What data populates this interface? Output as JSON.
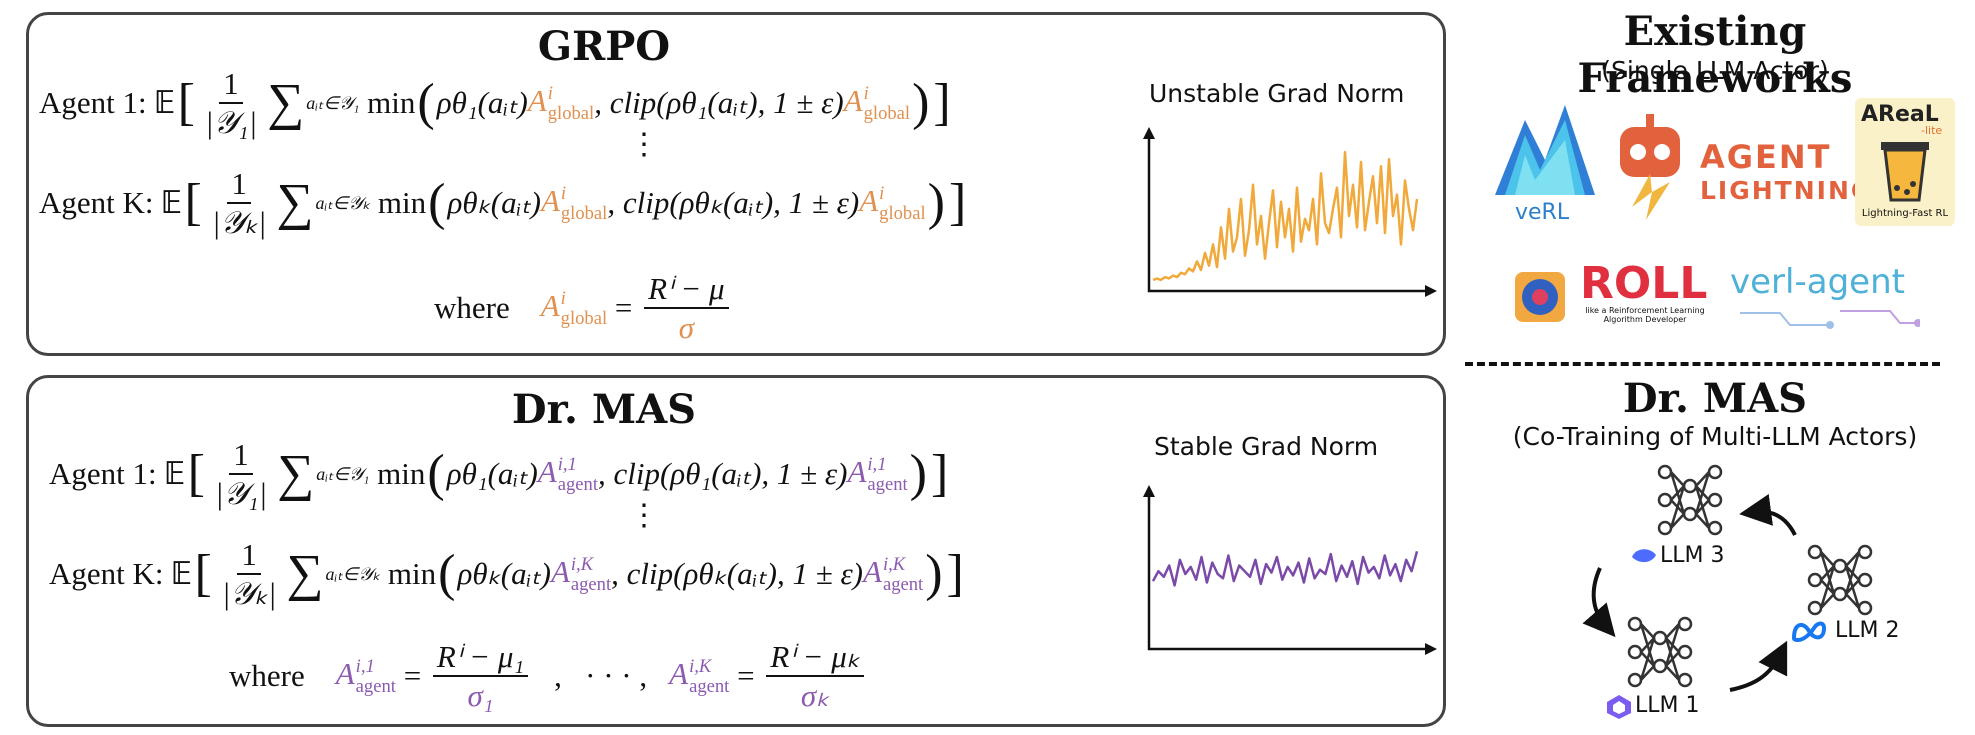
{
  "grpo": {
    "title": "GRPO",
    "agent1_label": "Agent 1:",
    "agentK_label": "Agent K:",
    "expectation": "𝔼",
    "frac_num": "1",
    "den1": "|𝒴₁|",
    "denK": "|𝒴ₖ|",
    "sum1_sub": "aᵢₜ∈𝒴₁",
    "sumK_sub": "aᵢₜ∈𝒴ₖ",
    "min_text": "min",
    "rho1": "ρθ₁(aᵢₜ)",
    "rhoK": "ρθₖ(aᵢₜ)",
    "adv": "A",
    "adv_sup": "i",
    "adv_sub": "global",
    "clip1": ", clip(ρθ₁(aᵢₜ), 1 ± ε)",
    "clipK": ", clip(ρθₖ(aᵢₜ), 1 ± ε)",
    "where": "where",
    "where_num": "Rⁱ − μ",
    "where_den": "σ",
    "vdots": "⋮",
    "chart_label": "Unstable Grad Norm"
  },
  "drmas": {
    "title": "Dr. MAS",
    "agent1_label": "Agent 1:",
    "agentK_label": "Agent K:",
    "expectation": "𝔼",
    "frac_num": "1",
    "den1": "|𝒴₁|",
    "denK": "|𝒴ₖ|",
    "sum1_sub": "aᵢₜ∈𝒴₁",
    "sumK_sub": "aᵢₜ∈𝒴ₖ",
    "min_text": "min",
    "rho1": "ρθ₁(aᵢₜ)",
    "rhoK": "ρθₖ(aᵢₜ)",
    "adv": "A",
    "adv_sup1": "i,1",
    "adv_supK": "i,K",
    "adv_sub": "agent",
    "clip1": ", clip(ρθ₁(aᵢₜ), 1 ± ε)",
    "clipK": ", clip(ρθₖ(aᵢₜ), 1 ± ε)",
    "where": "where",
    "where_num1": "Rⁱ − μ₁",
    "where_den1": "σ₁",
    "where_numK": "Rⁱ − μₖ",
    "where_denK": "σₖ",
    "ellipsis": ",   · · · ,",
    "vdots": "⋮",
    "chart_label": "Stable Grad Norm"
  },
  "existing": {
    "title": "Existing Frameworks",
    "subtitle": "(Single LLM Actor)",
    "logos": {
      "verl": "veRL",
      "agent_lightning_1": "AGENT",
      "agent_lightning_2": "LIGHTNING",
      "areal": "AReaL",
      "areal_lite": "-lite",
      "areal_tag": "Lightning-Fast RL",
      "roll": "ROLL",
      "roll_tag": "like a Reinforcement Learning Algorithm Developer",
      "verl_agent": "verl-agent"
    }
  },
  "drmas_side": {
    "title": "Dr. MAS",
    "subtitle": "(Co-Training of Multi-LLM Actors)",
    "llms": [
      "LLM 3",
      "LLM 2",
      "LLM 1"
    ]
  },
  "colors": {
    "orange": "#e0904f",
    "purple": "#8c5bb0",
    "chart_orange": "#f0a93a",
    "chart_purple": "#7b4aa8"
  },
  "chart_data": [
    {
      "type": "line",
      "title": "Unstable Grad Norm",
      "series": [
        {
          "values": [
            0.05,
            0.06,
            0.05,
            0.07,
            0.06,
            0.08,
            0.07,
            0.1,
            0.09,
            0.13,
            0.11,
            0.18,
            0.12,
            0.24,
            0.15,
            0.3,
            0.14,
            0.42,
            0.2,
            0.55,
            0.25,
            0.35,
            0.62,
            0.22,
            0.4,
            0.72,
            0.3,
            0.5,
            0.2,
            0.45,
            0.68,
            0.28,
            0.6,
            0.35,
            0.55,
            0.25,
            0.7,
            0.32,
            0.48,
            0.4,
            0.62,
            0.3,
            0.8,
            0.45,
            0.38,
            0.55,
            0.7,
            0.35,
            0.95,
            0.5,
            0.72,
            0.42,
            0.88,
            0.4,
            0.6,
            0.78,
            0.45,
            0.85,
            0.38,
            0.9,
            0.5,
            0.65,
            0.3,
            0.75,
            0.55,
            0.4,
            0.62
          ]
        }
      ]
    },
    {
      "type": "line",
      "title": "Stable Grad Norm",
      "series": [
        {
          "values": [
            0.45,
            0.52,
            0.48,
            0.56,
            0.42,
            0.6,
            0.5,
            0.55,
            0.46,
            0.62,
            0.44,
            0.58,
            0.5,
            0.47,
            0.63,
            0.45,
            0.56,
            0.52,
            0.48,
            0.6,
            0.43,
            0.57,
            0.51,
            0.62,
            0.46,
            0.55,
            0.49,
            0.58,
            0.44,
            0.61,
            0.47,
            0.53,
            0.5,
            0.64,
            0.45,
            0.56,
            0.48,
            0.59,
            0.43,
            0.62,
            0.51,
            0.55,
            0.47,
            0.63,
            0.49,
            0.57,
            0.45,
            0.6,
            0.52,
            0.66
          ]
        }
      ]
    }
  ]
}
